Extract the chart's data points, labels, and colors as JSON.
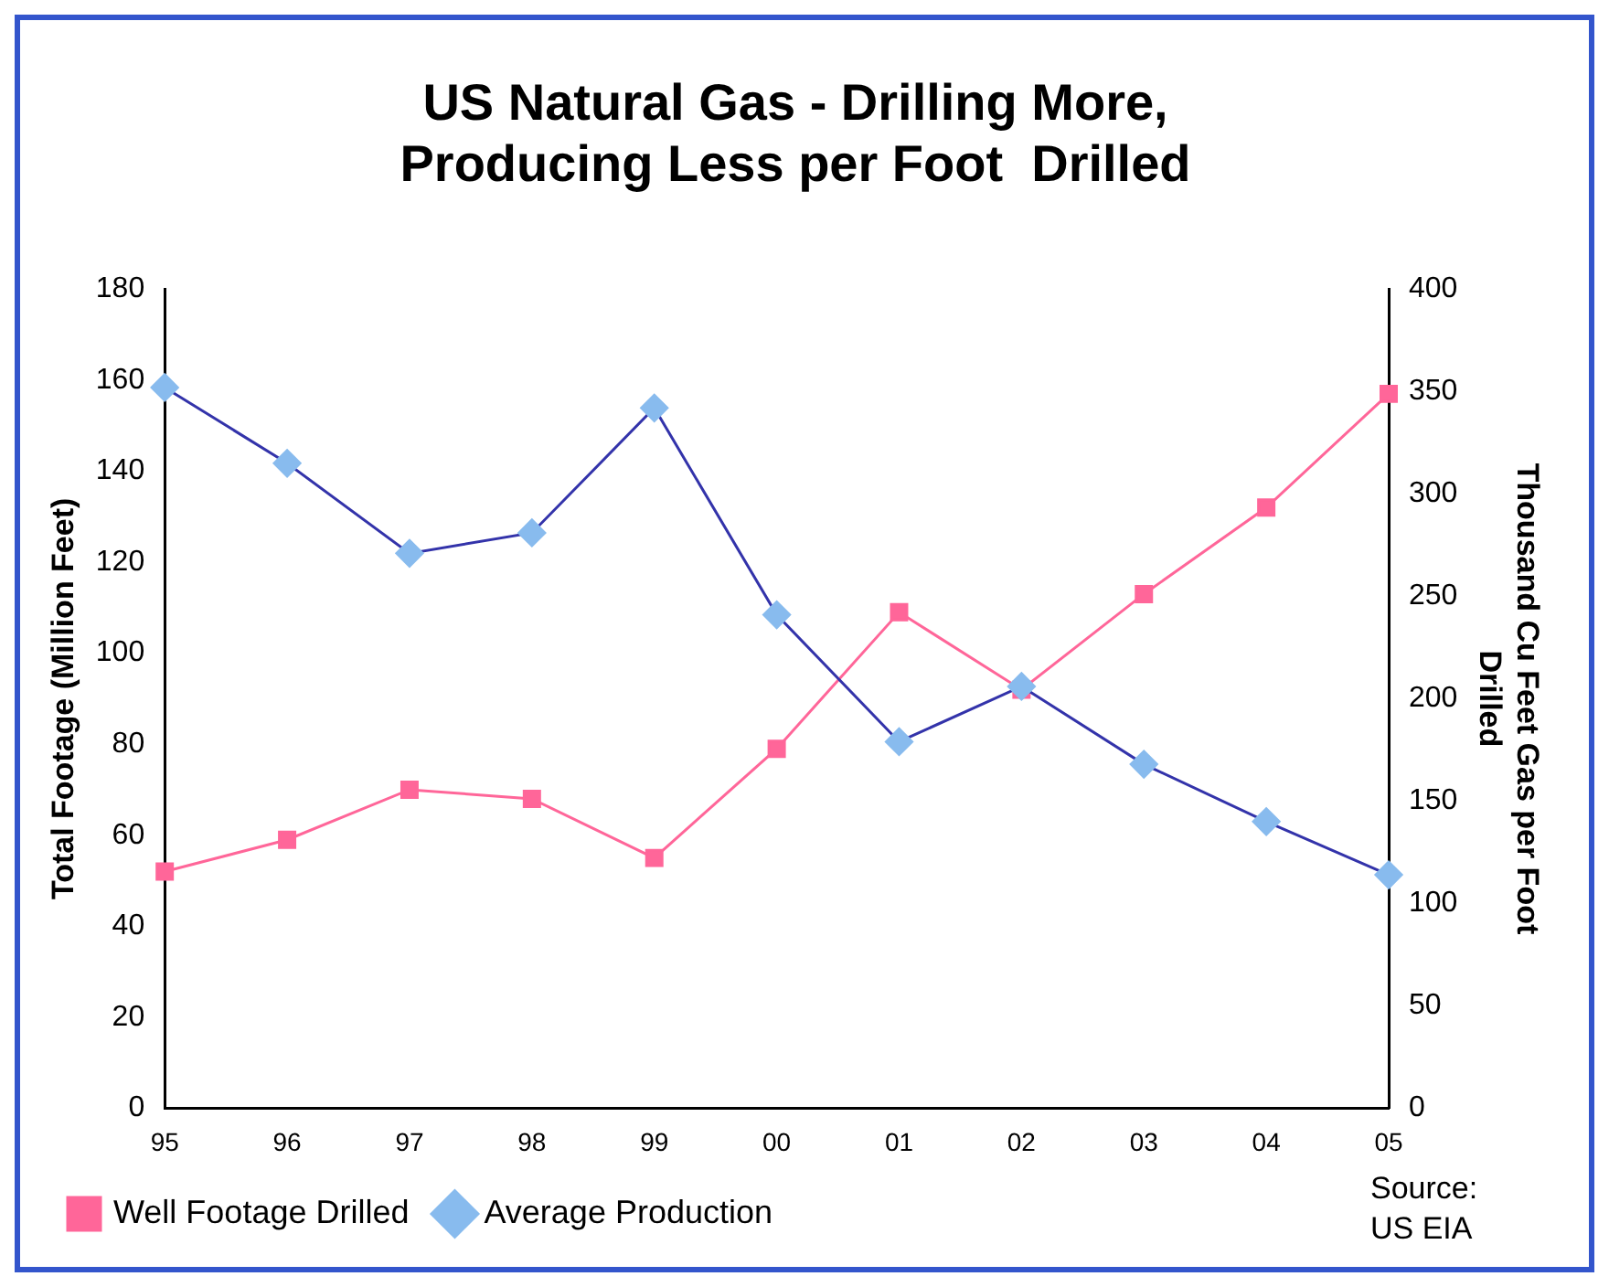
{
  "chart_data": {
    "type": "line",
    "title": "US Natural Gas - Drilling More, Producing Less per Foot  Drilled",
    "ylabel": "Total Footage (Million Feet)",
    "y2label": "Thousand Cu Feet Gas per Foot Drilled",
    "categories": [
      "95",
      "96",
      "97",
      "98",
      "99",
      "00",
      "01",
      "02",
      "03",
      "04",
      "05"
    ],
    "series": [
      {
        "name": "Well Footage Drilled",
        "color": "#ff6699",
        "marker": "square",
        "values": [
          52,
          59,
          70,
          68,
          55,
          79,
          109,
          92,
          113,
          132,
          157
        ]
      },
      {
        "name": "Average Production",
        "color": "#3333aa",
        "marker": "diamond",
        "axis": "y2",
        "values": [
          352,
          315,
          271,
          281,
          342,
          241,
          179,
          206,
          168,
          140,
          114
        ]
      }
    ],
    "ylim": [
      0,
      180
    ],
    "yticks": [
      0,
      20,
      40,
      60,
      80,
      100,
      120,
      140,
      160,
      180
    ],
    "y2lim": [
      0,
      400
    ],
    "y2ticks": [
      0,
      50,
      100,
      150,
      200,
      250,
      300,
      350,
      400
    ],
    "grid": false,
    "legend": "bottom left",
    "annotations": [
      "Source:\nUS EIA"
    ]
  }
}
